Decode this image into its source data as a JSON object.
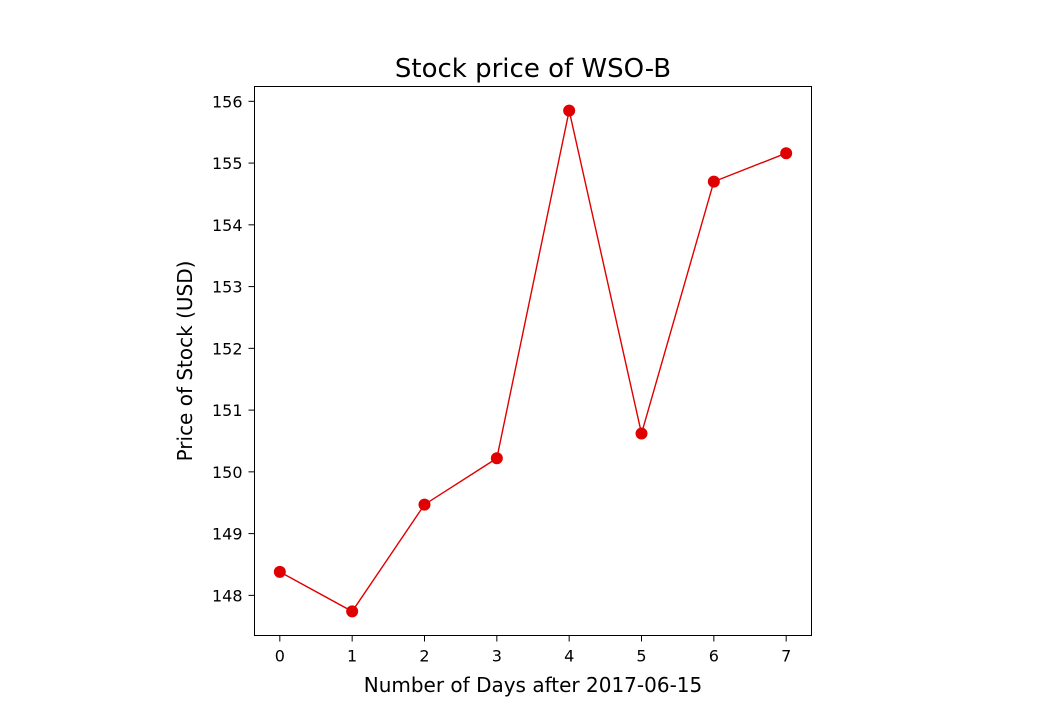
{
  "chart_data": {
    "type": "line",
    "title": "Stock price of WSO-B",
    "xlabel": "Number of Days after 2017-06-15",
    "ylabel": "Price of Stock (USD)",
    "x": [
      0,
      1,
      2,
      3,
      4,
      5,
      6,
      7
    ],
    "series": [
      {
        "values": [
          148.38,
          147.74,
          149.47,
          150.22,
          155.85,
          150.62,
          154.7,
          155.16
        ],
        "color": "#e00000",
        "marker": "circle"
      }
    ],
    "xlim": [
      -0.35,
      7.35
    ],
    "ylim": [
      147.35,
      156.24
    ],
    "xticks": [
      "0",
      "1",
      "2",
      "3",
      "4",
      "5",
      "6",
      "7"
    ],
    "yticks": [
      "148",
      "149",
      "150",
      "151",
      "152",
      "153",
      "154",
      "155",
      "156"
    ],
    "grid": false,
    "legend": "none"
  }
}
